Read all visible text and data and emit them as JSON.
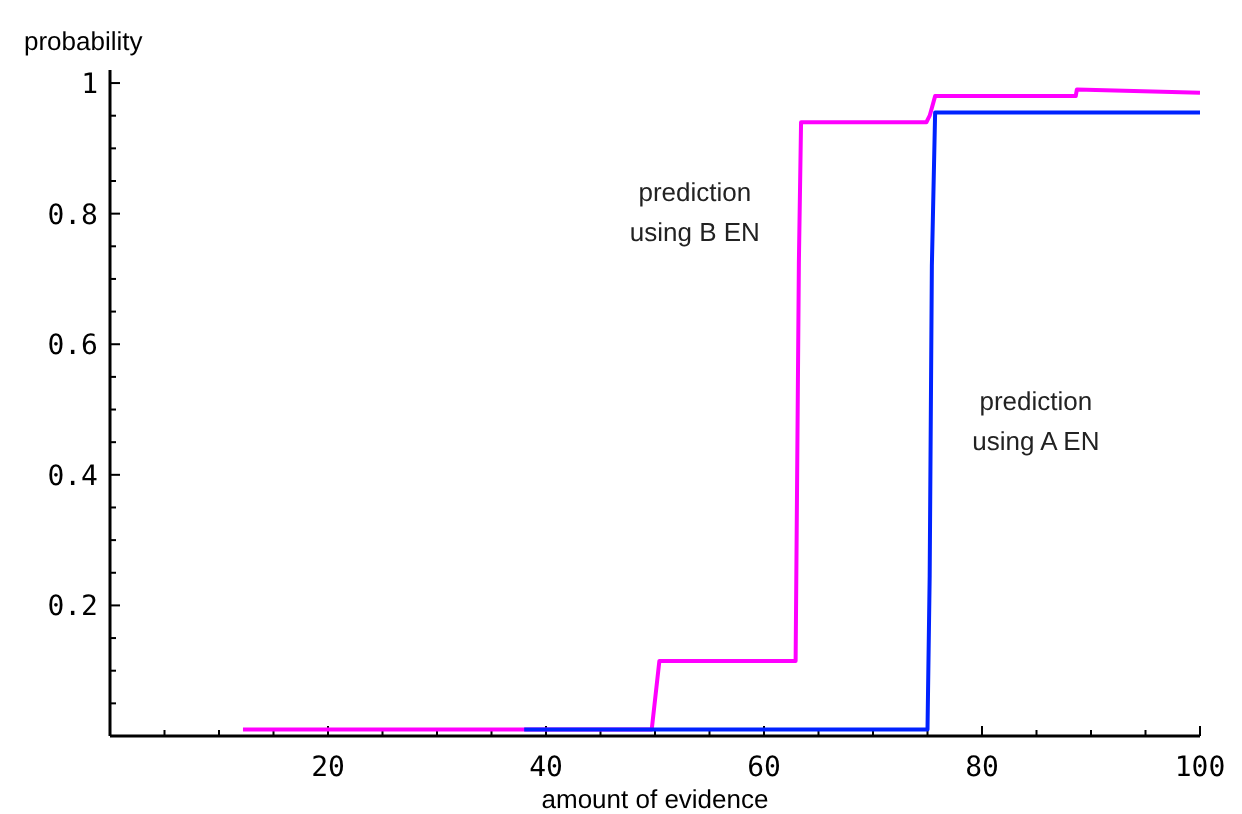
{
  "chart_data": {
    "type": "line",
    "xlabel": "amount of evidence",
    "ylabel": "probability",
    "xlim": [
      0,
      100
    ],
    "ylim": [
      0,
      1.02
    ],
    "xticks": [
      {
        "value": 5,
        "label": null
      },
      {
        "value": 10,
        "label": null
      },
      {
        "value": 15,
        "label": null
      },
      20,
      {
        "value": 25,
        "label": null
      },
      {
        "value": 30,
        "label": null
      },
      {
        "value": 35,
        "label": null
      },
      40,
      {
        "value": 45,
        "label": null
      },
      {
        "value": 50,
        "label": null
      },
      {
        "value": 55,
        "label": null
      },
      60,
      {
        "value": 65,
        "label": null
      },
      {
        "value": 70,
        "label": null
      },
      {
        "value": 75,
        "label": null
      },
      80,
      {
        "value": 85,
        "label": null
      },
      {
        "value": 90,
        "label": null
      },
      {
        "value": 95,
        "label": null
      },
      100
    ],
    "yticks": [
      {
        "value": 0.05,
        "label": null
      },
      {
        "value": 0.1,
        "label": null
      },
      {
        "value": 0.15,
        "label": null
      },
      0.2,
      {
        "value": 0.25,
        "label": null
      },
      {
        "value": 0.3,
        "label": null
      },
      {
        "value": 0.35,
        "label": null
      },
      0.4,
      {
        "value": 0.45,
        "label": null
      },
      {
        "value": 0.5,
        "label": null
      },
      {
        "value": 0.55,
        "label": null
      },
      0.6,
      {
        "value": 0.65,
        "label": null
      },
      {
        "value": 0.7,
        "label": null
      },
      {
        "value": 0.75,
        "label": null
      },
      0.8,
      {
        "value": 0.85,
        "label": null
      },
      {
        "value": 0.9,
        "label": null
      },
      {
        "value": 0.95,
        "label": null
      },
      1
    ],
    "grid": false,
    "marker": "none",
    "line_style": "solid",
    "series": [
      {
        "name": "prediction using B EN",
        "color": "#ff00ff",
        "x": [
          12.2,
          49.7,
          50.4,
          62.9,
          63.0,
          63.2,
          63.4,
          74.9,
          75.2,
          75.7,
          88.6,
          88.7,
          100
        ],
        "values": [
          0.01,
          0.01,
          0.115,
          0.115,
          0.315,
          0.726,
          0.94,
          0.94,
          0.95,
          0.98,
          0.98,
          0.99,
          0.985
        ]
      },
      {
        "name": "prediction using A EN",
        "color": "#0022ff",
        "x": [
          38,
          75.0,
          75.2,
          75.4,
          75.7,
          100
        ],
        "values": [
          0.01,
          0.01,
          0.245,
          0.72,
          0.955,
          0.955
        ]
      }
    ]
  }
}
